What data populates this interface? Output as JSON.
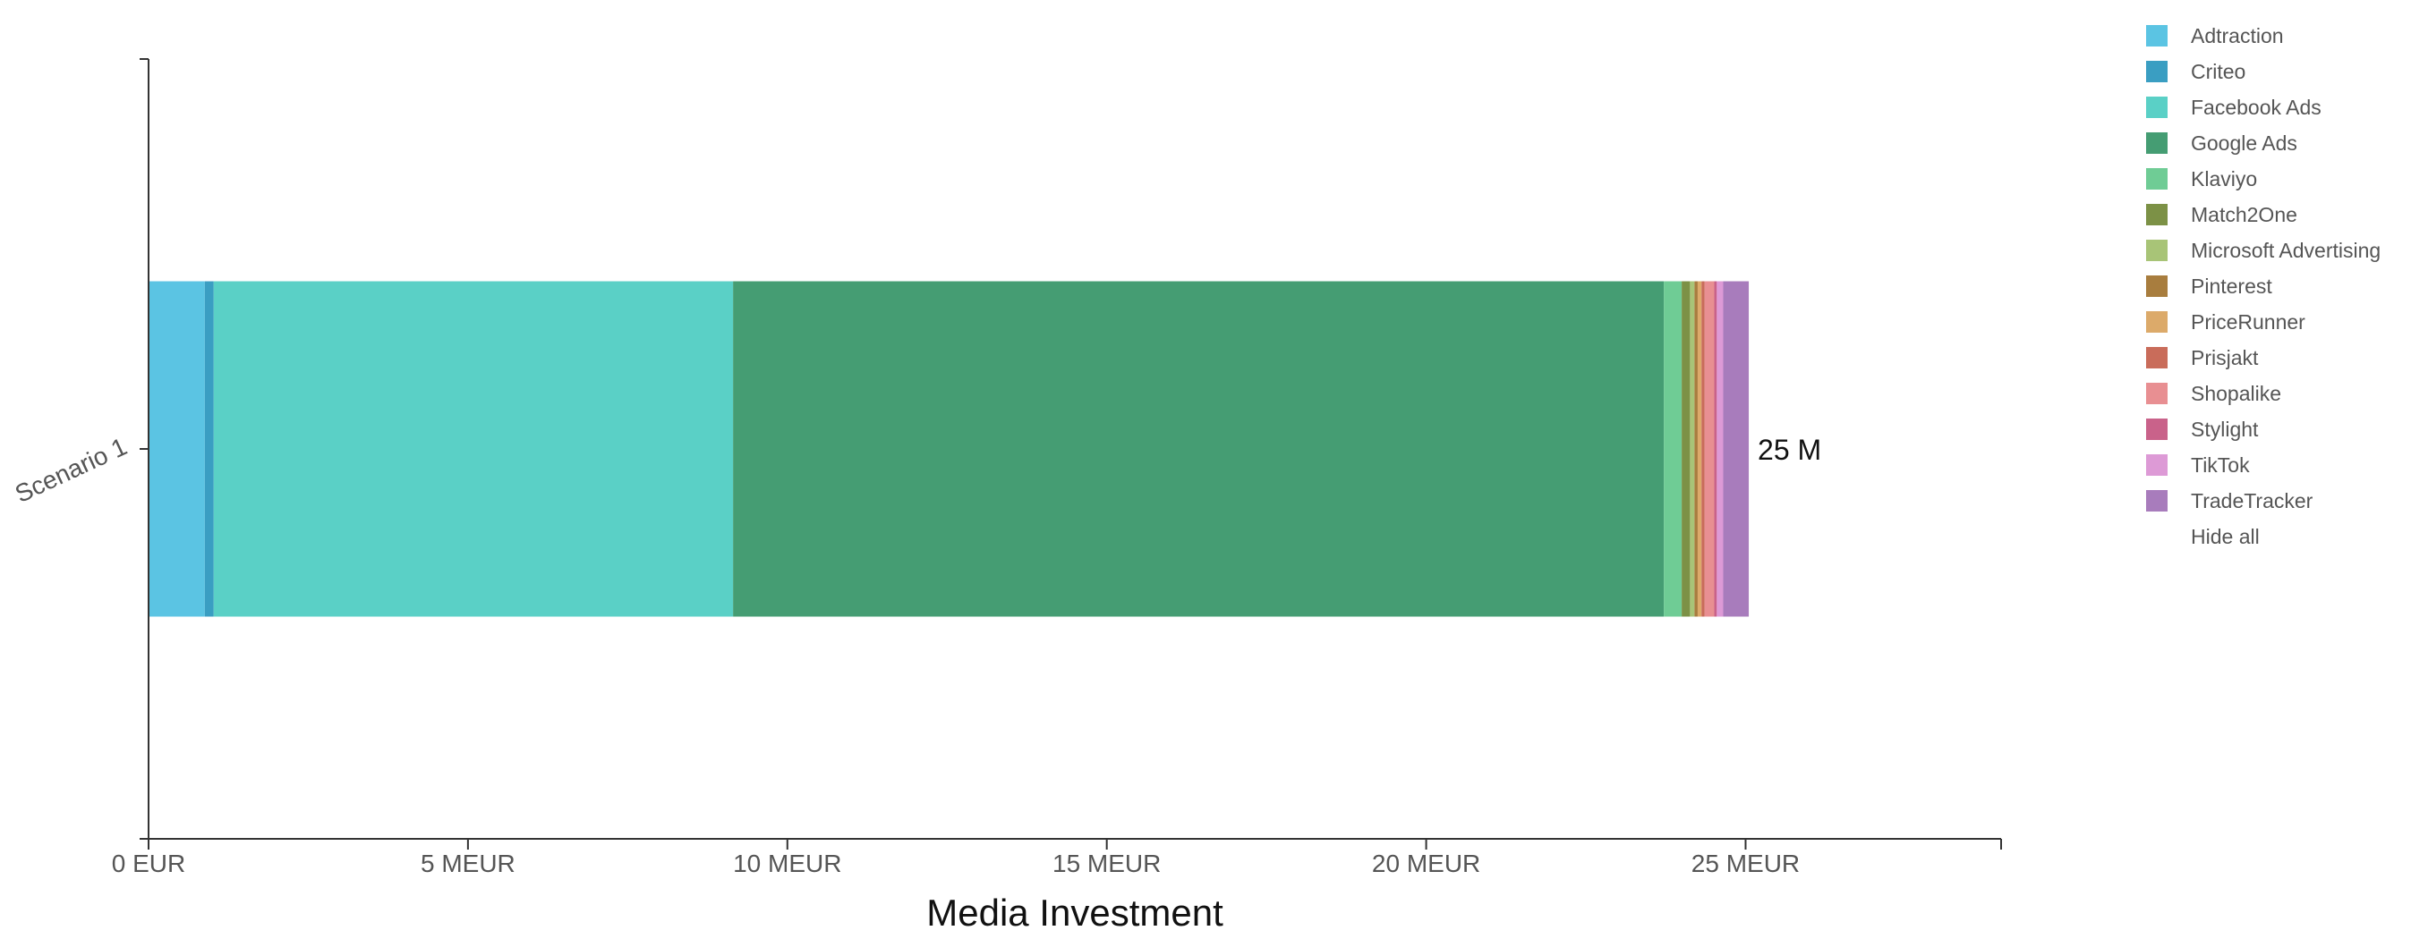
{
  "chart_data": {
    "type": "bar",
    "orientation": "horizontal",
    "stacked": true,
    "categories": [
      "Scenario 1"
    ],
    "xlabel": "Media Investment",
    "ylabel": "",
    "xlim": [
      0,
      29000000
    ],
    "x_ticks": [
      {
        "value": 0,
        "label": "0 EUR"
      },
      {
        "value": 5000000,
        "label": "5 MEUR"
      },
      {
        "value": 10000000,
        "label": "10 MEUR"
      },
      {
        "value": 15000000,
        "label": "15 MEUR"
      },
      {
        "value": 20000000,
        "label": "20 MEUR"
      },
      {
        "value": 25000000,
        "label": "25 MEUR"
      }
    ],
    "grid": false,
    "legend_position": "right",
    "total_labels": [
      "25 M"
    ],
    "series": [
      {
        "name": "Adtraction",
        "color": "#5bc4e3",
        "values": [
          880000
        ]
      },
      {
        "name": "Criteo",
        "color": "#3a9ec2",
        "values": [
          140000
        ]
      },
      {
        "name": "Facebook Ads",
        "color": "#5ad0c6",
        "values": [
          8130000
        ]
      },
      {
        "name": "Google Ads",
        "color": "#459d73",
        "values": [
          14570000
        ]
      },
      {
        "name": "Klaviyo",
        "color": "#6fcc95",
        "values": [
          280000
        ]
      },
      {
        "name": "Match2One",
        "color": "#7c9146",
        "values": [
          130000
        ]
      },
      {
        "name": "Microsoft Advertising",
        "color": "#a8c477",
        "values": [
          70000
        ]
      },
      {
        "name": "Pinterest",
        "color": "#a87d3e",
        "values": [
          50000
        ]
      },
      {
        "name": "PriceRunner",
        "color": "#dcaa6a",
        "values": [
          60000
        ]
      },
      {
        "name": "Prisjakt",
        "color": "#c96c5a",
        "values": [
          50000
        ]
      },
      {
        "name": "Shopalike",
        "color": "#e88f92",
        "values": [
          150000
        ]
      },
      {
        "name": "Stylight",
        "color": "#c9628a",
        "values": [
          40000
        ]
      },
      {
        "name": "TikTok",
        "color": "#dd9ad6",
        "values": [
          100000
        ]
      },
      {
        "name": "TradeTracker",
        "color": "#a87cbc",
        "values": [
          400000
        ]
      }
    ]
  },
  "legend": {
    "hide_all_label": "Hide all"
  }
}
